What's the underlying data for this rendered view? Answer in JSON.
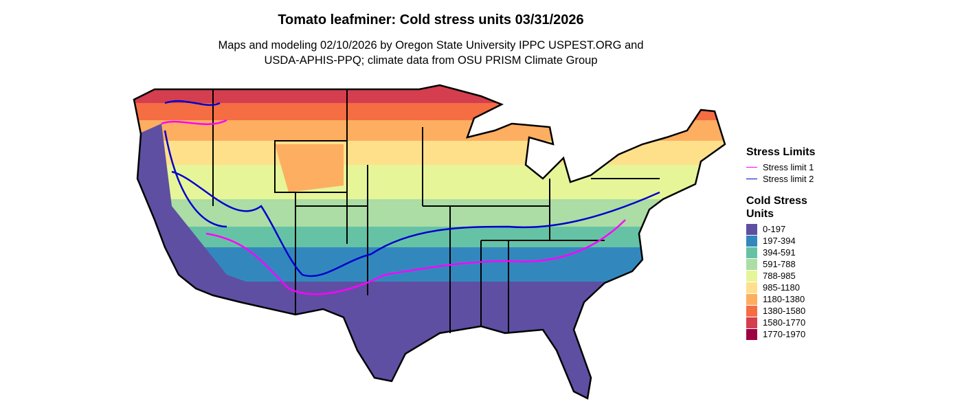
{
  "title": "Tomato leafminer: Cold stress units 03/31/2026",
  "subtitle": [
    "Maps and modeling 02/10/2026 by Oregon State University IPPC USPEST.ORG and",
    "USDA-APHIS-PPQ; climate data from OSU PRISM Climate Group"
  ],
  "legend_limits": {
    "title": "Stress Limits",
    "items": [
      {
        "name": "Stress limit 1",
        "color": "#ff00ff"
      },
      {
        "name": "Stress limit 2",
        "color": "#0000cd"
      }
    ]
  },
  "legend_units": {
    "title": "Cold Stress Units",
    "items": [
      {
        "name": "0-197",
        "color": "#5e4fa2"
      },
      {
        "name": "197-394",
        "color": "#3288bd"
      },
      {
        "name": "394-591",
        "color": "#66c2a5"
      },
      {
        "name": "591-788",
        "color": "#abdda4"
      },
      {
        "name": "788-985",
        "color": "#e6f598"
      },
      {
        "name": "985-1180",
        "color": "#fee08b"
      },
      {
        "name": "1180-1380",
        "color": "#fdae61"
      },
      {
        "name": "1380-1580",
        "color": "#f46d43"
      },
      {
        "name": "1580-1770",
        "color": "#d53e4f"
      },
      {
        "name": "1770-1970",
        "color": "#9e0142"
      }
    ]
  }
}
